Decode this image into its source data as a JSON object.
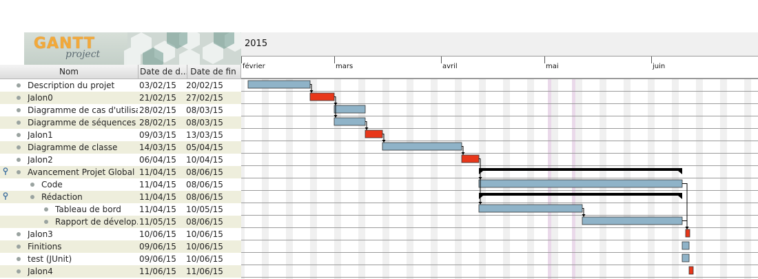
{
  "app": {
    "logo_text": "GANTT",
    "logo_sub": "project"
  },
  "columns": {
    "name": "Nom",
    "start": "Date de d...",
    "end": "Date de fin"
  },
  "tasks": [
    {
      "name": "Description du projet",
      "start": "03/02/15",
      "end": "20/02/15",
      "level": 0,
      "pin": false
    },
    {
      "name": "Jalon0",
      "start": "21/02/15",
      "end": "27/02/15",
      "level": 0,
      "pin": false
    },
    {
      "name": "Diagramme de cas d'utilisa...",
      "start": "28/02/15",
      "end": "08/03/15",
      "level": 0,
      "pin": false
    },
    {
      "name": "Diagramme de séquences",
      "start": "28/02/15",
      "end": "08/03/15",
      "level": 0,
      "pin": false
    },
    {
      "name": "Jalon1",
      "start": "09/03/15",
      "end": "13/03/15",
      "level": 0,
      "pin": false
    },
    {
      "name": "Diagramme de classe",
      "start": "14/03/15",
      "end": "05/04/15",
      "level": 0,
      "pin": false
    },
    {
      "name": "Jalon2",
      "start": "06/04/15",
      "end": "10/04/15",
      "level": 0,
      "pin": false
    },
    {
      "name": "Avancement Projet Global",
      "start": "11/04/15",
      "end": "08/06/15",
      "level": 0,
      "pin": true
    },
    {
      "name": "Code",
      "start": "11/04/15",
      "end": "08/06/15",
      "level": 1,
      "pin": false
    },
    {
      "name": "Rédaction",
      "start": "11/04/15",
      "end": "08/06/15",
      "level": 1,
      "pin": true
    },
    {
      "name": "Tableau de bord",
      "start": "11/04/15",
      "end": "10/05/15",
      "level": 2,
      "pin": false
    },
    {
      "name": "Rapport de dévelop...",
      "start": "11/05/15",
      "end": "08/06/15",
      "level": 2,
      "pin": false
    },
    {
      "name": "Jalon3",
      "start": "10/06/15",
      "end": "10/06/15",
      "level": 0,
      "pin": false
    },
    {
      "name": "Finitions",
      "start": "09/06/15",
      "end": "10/06/15",
      "level": 0,
      "pin": false
    },
    {
      "name": "test (JUnit)",
      "start": "09/06/15",
      "end": "10/06/15",
      "level": 0,
      "pin": false
    },
    {
      "name": "Jalon4",
      "start": "11/06/15",
      "end": "11/06/15",
      "level": 0,
      "pin": false
    }
  ],
  "timeline": {
    "year": "2015",
    "months": [
      {
        "label": "février"
      },
      {
        "label": "mars"
      },
      {
        "label": "avril"
      },
      {
        "label": "mai"
      },
      {
        "label": "juin"
      }
    ]
  },
  "colors": {
    "task_bar": "#8fb3c8",
    "milestone_bar": "#e8371a",
    "summary_bar": "#000000",
    "weekend_shade": "#f0f0f0",
    "holiday_shade": "#ead9ea",
    "row_alt": "#eeeedc"
  }
}
